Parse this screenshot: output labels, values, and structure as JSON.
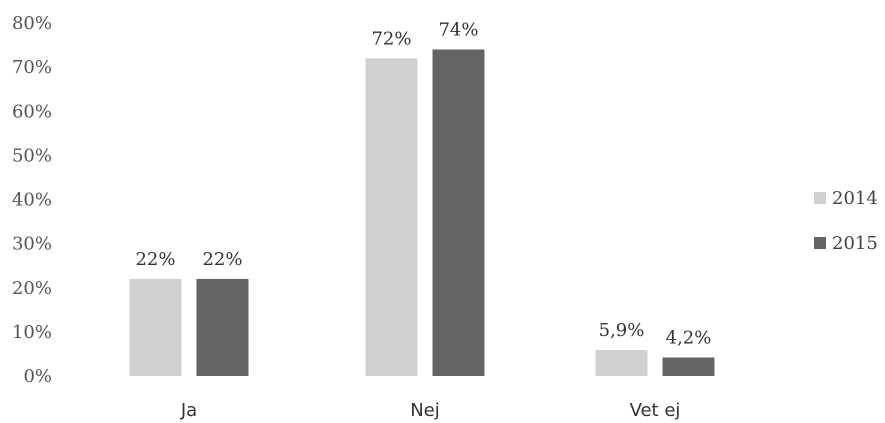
{
  "chart_data": {
    "type": "bar",
    "categories": [
      "Ja",
      "Nej",
      "Vet ej"
    ],
    "series": [
      {
        "name": "2014",
        "values": [
          22,
          72,
          5.9
        ],
        "labels": [
          "22%",
          "72%",
          "5,9%"
        ],
        "color": "#d0d0d0"
      },
      {
        "name": "2015",
        "values": [
          22,
          74,
          4.2
        ],
        "labels": [
          "22%",
          "74%",
          "4,2%"
        ],
        "color": "#646464"
      }
    ],
    "ylim": [
      0,
      80
    ],
    "yticks": [
      0,
      10,
      20,
      30,
      40,
      50,
      60,
      70,
      80
    ],
    "ytick_labels": [
      "0%",
      "10%",
      "20%",
      "30%",
      "40%",
      "50%",
      "60%",
      "70%",
      "80%"
    ],
    "grid": false,
    "legend_position": "right",
    "title": "",
    "xlabel": "",
    "ylabel": ""
  }
}
